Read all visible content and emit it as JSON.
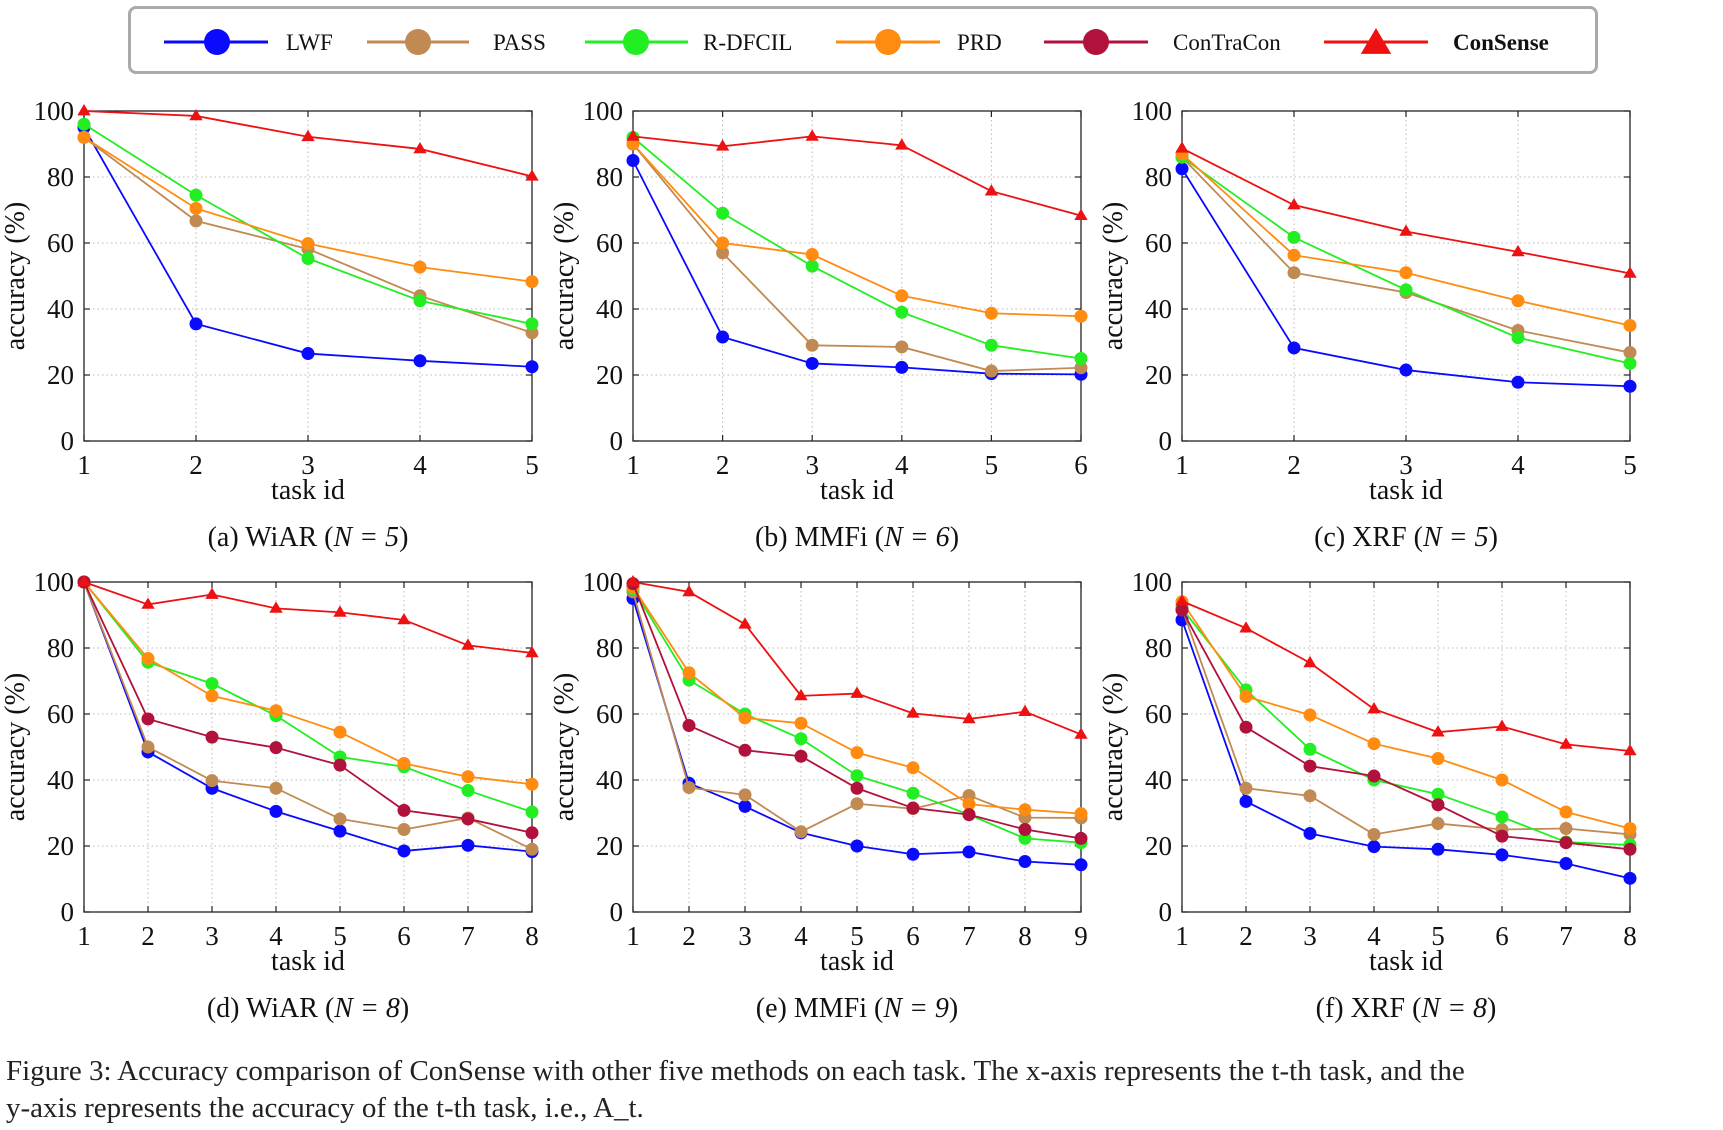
{
  "legend": {
    "entries": [
      {
        "name": "LWF",
        "color": "#0a0aff",
        "marker": "circle"
      },
      {
        "name": "PASS",
        "color": "#c08a52",
        "marker": "circle"
      },
      {
        "name": "R-DFCIL",
        "color": "#22ee22",
        "marker": "circle"
      },
      {
        "name": "PRD",
        "color": "#ff8c10",
        "marker": "circle"
      },
      {
        "name": "ConTraCon",
        "color": "#b0123c",
        "marker": "circle"
      },
      {
        "name": "ConSense",
        "color": "#ee1111",
        "marker": "triangle",
        "bold": true
      }
    ]
  },
  "chart_data": [
    {
      "type": "line",
      "subcaption": {
        "label": "(a) WiAR",
        "n_part": "N = 5"
      },
      "xlabel": "task id",
      "ylabel": "accuracy (%)",
      "x": [
        1,
        2,
        3,
        4,
        5
      ],
      "ylim": [
        0,
        100
      ],
      "yticks": [
        0,
        20,
        40,
        60,
        80,
        100
      ],
      "series": [
        {
          "name": "LWF",
          "values": [
            95,
            35.5,
            26.5,
            24.3,
            22.5
          ]
        },
        {
          "name": "PASS",
          "values": [
            92,
            66.7,
            58.2,
            44,
            32.8
          ]
        },
        {
          "name": "R-DFCIL",
          "values": [
            96,
            74.5,
            55.3,
            42.5,
            35.5
          ]
        },
        {
          "name": "PRD",
          "values": [
            92,
            70.5,
            59.8,
            52.7,
            48.3
          ]
        },
        {
          "name": "ConSense",
          "values": [
            100,
            98.5,
            92.2,
            88.5,
            80.2
          ]
        }
      ]
    },
    {
      "type": "line",
      "subcaption": {
        "label": "(b) MMFi",
        "n_part": "N = 6"
      },
      "xlabel": "task id",
      "ylabel": "accuracy (%)",
      "x": [
        1,
        2,
        3,
        4,
        5,
        6
      ],
      "ylim": [
        0,
        100
      ],
      "yticks": [
        0,
        20,
        40,
        60,
        80,
        100
      ],
      "series": [
        {
          "name": "LWF",
          "values": [
            85,
            31.5,
            23.5,
            22.3,
            20.4,
            20.2
          ]
        },
        {
          "name": "PASS",
          "values": [
            90,
            57,
            29,
            28.5,
            21.2,
            22.2
          ]
        },
        {
          "name": "R-DFCIL",
          "values": [
            92,
            69,
            53,
            39,
            29,
            25
          ]
        },
        {
          "name": "PRD",
          "values": [
            90,
            60,
            56.5,
            44,
            38.7,
            37.8
          ]
        },
        {
          "name": "ConSense",
          "values": [
            92.3,
            89.3,
            92.3,
            89.6,
            75.7,
            68.3
          ]
        }
      ]
    },
    {
      "type": "line",
      "subcaption": {
        "label": "(c) XRF",
        "n_part": "N = 5"
      },
      "xlabel": "task id",
      "ylabel": "accuracy (%)",
      "x": [
        1,
        2,
        3,
        4,
        5
      ],
      "ylim": [
        0,
        100
      ],
      "yticks": [
        0,
        20,
        40,
        60,
        80,
        100
      ],
      "series": [
        {
          "name": "LWF",
          "values": [
            82.5,
            28.2,
            21.5,
            17.8,
            16.6
          ]
        },
        {
          "name": "PASS",
          "values": [
            86,
            51,
            45,
            33.5,
            26.8
          ]
        },
        {
          "name": "R-DFCIL",
          "values": [
            86,
            61.7,
            45.8,
            31.3,
            23.5
          ]
        },
        {
          "name": "PRD",
          "values": [
            87,
            56.3,
            51,
            42.5,
            35
          ]
        },
        {
          "name": "ConSense",
          "values": [
            88.7,
            71.5,
            63.5,
            57.3,
            50.8
          ]
        }
      ]
    },
    {
      "type": "line",
      "subcaption": {
        "label": "(d) WiAR",
        "n_part": "N = 8"
      },
      "xlabel": "task id",
      "ylabel": "accuracy (%)",
      "x": [
        1,
        2,
        3,
        4,
        5,
        6,
        7,
        8
      ],
      "ylim": [
        0,
        100
      ],
      "yticks": [
        0,
        20,
        40,
        60,
        80,
        100
      ],
      "series": [
        {
          "name": "LWF",
          "values": [
            100,
            48.5,
            37.5,
            30.5,
            24.5,
            18.5,
            20.2,
            18.3
          ]
        },
        {
          "name": "PASS",
          "values": [
            100,
            50,
            39.8,
            37.5,
            28.2,
            25,
            28.5,
            19
          ]
        },
        {
          "name": "R-DFCIL",
          "values": [
            100,
            75.7,
            69.2,
            59.5,
            47,
            44,
            36.8,
            30.3
          ]
        },
        {
          "name": "PRD",
          "values": [
            100,
            76.8,
            65.5,
            61,
            54.5,
            45,
            41,
            38.7
          ]
        },
        {
          "name": "ConTraCon",
          "values": [
            100,
            58.5,
            53,
            49.8,
            44.5,
            30.8,
            28.2,
            24
          ]
        },
        {
          "name": "ConSense",
          "values": [
            100,
            93.2,
            96.2,
            92,
            90.8,
            88.5,
            80.8,
            78.5
          ]
        }
      ]
    },
    {
      "type": "line",
      "subcaption": {
        "label": "(e) MMFi",
        "n_part": "N = 9"
      },
      "xlabel": "task id",
      "ylabel": "accuracy (%)",
      "x": [
        1,
        2,
        3,
        4,
        5,
        6,
        7,
        8,
        9
      ],
      "ylim": [
        0,
        100
      ],
      "yticks": [
        0,
        20,
        40,
        60,
        80,
        100
      ],
      "series": [
        {
          "name": "LWF",
          "values": [
            95,
            39,
            32,
            24,
            20,
            17.5,
            18.2,
            15.3,
            14.3
          ]
        },
        {
          "name": "PASS",
          "values": [
            97,
            37.7,
            35.5,
            24.3,
            32.8,
            31.3,
            35.3,
            28.6,
            28.5
          ]
        },
        {
          "name": "R-DFCIL",
          "values": [
            98,
            70.3,
            60,
            52.5,
            41.3,
            36,
            29.5,
            22.3,
            21
          ]
        },
        {
          "name": "PRD",
          "values": [
            98.5,
            72.5,
            58.8,
            57.2,
            48.3,
            43.7,
            32.7,
            31,
            29.8
          ]
        },
        {
          "name": "ConTraCon",
          "values": [
            99.5,
            56.5,
            49,
            47.2,
            37.5,
            31.5,
            29.5,
            25,
            22.3
          ]
        },
        {
          "name": "ConSense",
          "values": [
            100,
            97,
            87.2,
            65.5,
            66.2,
            60.2,
            58.5,
            60.7,
            53.8
          ]
        }
      ]
    },
    {
      "type": "line",
      "subcaption": {
        "label": "(f) XRF",
        "n_part": "N = 8"
      },
      "xlabel": "task id",
      "ylabel": "accuracy (%)",
      "x": [
        1,
        2,
        3,
        4,
        5,
        6,
        7,
        8
      ],
      "ylim": [
        0,
        100
      ],
      "yticks": [
        0,
        20,
        40,
        60,
        80,
        100
      ],
      "series": [
        {
          "name": "LWF",
          "values": [
            88.5,
            33.5,
            23.8,
            19.8,
            19,
            17.3,
            14.7,
            10.2
          ]
        },
        {
          "name": "PASS",
          "values": [
            92,
            37.5,
            35.2,
            23.5,
            26.8,
            25,
            25.3,
            23.5
          ]
        },
        {
          "name": "R-DFCIL",
          "values": [
            92,
            67.3,
            49.3,
            40,
            35.7,
            28.8,
            21.2,
            20.3
          ]
        },
        {
          "name": "PRD",
          "values": [
            94,
            65.3,
            59.7,
            51,
            46.5,
            40,
            30.3,
            25.3
          ]
        },
        {
          "name": "ConTraCon",
          "values": [
            91.5,
            56,
            44.2,
            41.2,
            32.5,
            23,
            21,
            19
          ]
        },
        {
          "name": "ConSense",
          "values": [
            94.2,
            86,
            75.5,
            61.5,
            54.5,
            56.2,
            50.8,
            48.8
          ]
        }
      ]
    }
  ],
  "caption": {
    "line1": "Figure 3: Accuracy comparison of ConSense with other five methods on each task. The x-axis represents the t-th task, and the",
    "line2": "y-axis represents the accuracy of the t-th task, i.e., A_t."
  }
}
